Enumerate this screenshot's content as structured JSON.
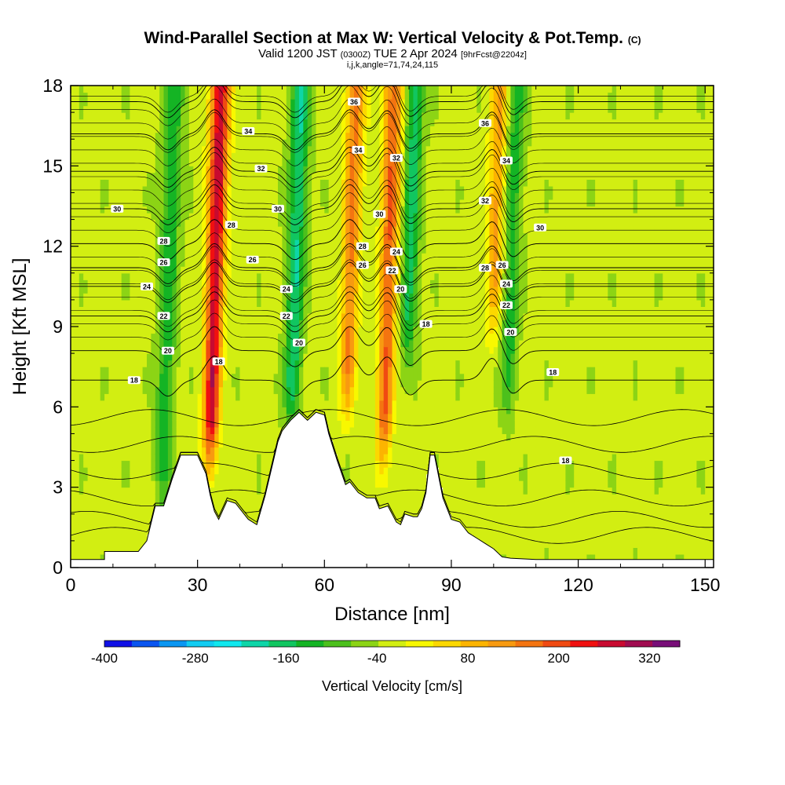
{
  "title": {
    "main": "Wind-Parallel Section at Max W: Vertical Velocity & Pot.Temp.",
    "copyright": "(C)",
    "valid_prefix": "Valid 1200 JST",
    "valid_utc": "(0300Z)",
    "valid_date": "TUE 2 Apr 2024",
    "forecast": "[9hrFcst@2204z]",
    "indices": "i,j,k,angle=71,74,24,115"
  },
  "chart_data": {
    "type": "heatmap",
    "xlabel": "Distance [nm]",
    "ylabel": "Height [Kft MSL]",
    "xlim": [
      0,
      152
    ],
    "ylim": [
      0,
      18
    ],
    "x_ticks": [
      0,
      30,
      60,
      90,
      120,
      150
    ],
    "y_ticks": [
      0,
      3,
      6,
      9,
      12,
      15,
      18
    ],
    "colorbar": {
      "label": "Vertical Velocity [cm/s]",
      "range": [
        -400,
        360
      ],
      "step": 40,
      "tick_labels": [
        -400,
        -280,
        -160,
        -40,
        80,
        200,
        320
      ],
      "colors": [
        "#1010e6",
        "#0a55f0",
        "#0a96f2",
        "#12ccf2",
        "#10e8ee",
        "#0ed6a8",
        "#11c660",
        "#14b424",
        "#4cc01c",
        "#8cd415",
        "#d2ee12",
        "#f8f800",
        "#fcd800",
        "#fcb400",
        "#f89a10",
        "#f47410",
        "#f04a12",
        "#f01010",
        "#c80a30",
        "#a00c50",
        "#780e78"
      ]
    },
    "updrafts": [
      {
        "x": 34,
        "z_base": 4.0,
        "z_top": 18,
        "peak": 340
      },
      {
        "x": 66,
        "z_base": 6.0,
        "z_top": 18,
        "peak": 200
      },
      {
        "x": 75,
        "z_base": 4.0,
        "z_top": 18,
        "peak": 230
      },
      {
        "x": 100,
        "z_base": 9.0,
        "z_top": 18,
        "peak": 160
      }
    ],
    "downdrafts": [
      {
        "x": 23,
        "z_base": 2.5,
        "z_top": 18,
        "peak": -120
      },
      {
        "x": 53,
        "z_base": 5.5,
        "z_top": 18,
        "peak": -170
      },
      {
        "x": 80,
        "z_base": 8.0,
        "z_top": 18,
        "peak": -150
      },
      {
        "x": 104,
        "z_base": 6.0,
        "z_top": 18,
        "peak": -110
      }
    ],
    "terrain": [
      [
        0,
        0.3
      ],
      [
        8,
        0.3
      ],
      [
        8,
        0.6
      ],
      [
        16,
        0.6
      ],
      [
        18,
        1
      ],
      [
        20,
        2.3
      ],
      [
        22,
        2.3
      ],
      [
        24,
        3.3
      ],
      [
        26,
        4.2
      ],
      [
        30,
        4.2
      ],
      [
        32,
        3.5
      ],
      [
        33,
        2.7
      ],
      [
        34,
        2.1
      ],
      [
        35,
        1.8
      ],
      [
        37,
        2.5
      ],
      [
        39,
        2.4
      ],
      [
        41,
        2
      ],
      [
        42,
        1.8
      ],
      [
        44,
        1.6
      ],
      [
        46,
        2.7
      ],
      [
        49,
        4.7
      ],
      [
        50,
        5.1
      ],
      [
        52,
        5.5
      ],
      [
        54,
        5.8
      ],
      [
        56,
        5.5
      ],
      [
        58,
        5.8
      ],
      [
        60,
        5.7
      ],
      [
        61,
        5
      ],
      [
        63,
        4
      ],
      [
        65,
        3.1
      ],
      [
        66,
        3.2
      ],
      [
        68,
        2.8
      ],
      [
        70,
        2.6
      ],
      [
        72,
        2.6
      ],
      [
        73,
        2.2
      ],
      [
        75,
        2.3
      ],
      [
        77,
        1.7
      ],
      [
        78,
        1.6
      ],
      [
        79,
        2
      ],
      [
        81,
        1.9
      ],
      [
        82,
        1.9
      ],
      [
        83,
        2.2
      ],
      [
        84,
        2.8
      ],
      [
        85,
        4.2
      ],
      [
        86,
        4.2
      ],
      [
        88,
        2.6
      ],
      [
        90,
        1.8
      ],
      [
        92,
        1.7
      ],
      [
        94,
        1.3
      ],
      [
        96,
        1.1
      ],
      [
        98,
        0.9
      ],
      [
        100,
        0.7
      ],
      [
        102,
        0.4
      ],
      [
        104,
        0.35
      ],
      [
        110,
        0.3
      ],
      [
        152,
        0.3
      ]
    ],
    "theta_contours": [
      {
        "label": "18",
        "z": 7.0
      },
      {
        "label": "20",
        "z": 8.1
      },
      {
        "label": "22",
        "z": 9.4
      },
      {
        "label": "24",
        "z": 10.5
      },
      {
        "label": "26",
        "z": 11.2
      },
      {
        "label": "28",
        "z": 12.1
      },
      {
        "label": "30",
        "z": 13.4
      },
      {
        "label": "32",
        "z": 14.8
      },
      {
        "label": "34",
        "z": 16.2
      },
      {
        "label": "36",
        "z": 17.4
      }
    ],
    "contour_labels": [
      {
        "text": "30",
        "x": 11,
        "z": 13.4
      },
      {
        "text": "28",
        "x": 22,
        "z": 12.2
      },
      {
        "text": "26",
        "x": 22,
        "z": 11.4
      },
      {
        "text": "24",
        "x": 18,
        "z": 10.5
      },
      {
        "text": "22",
        "x": 22,
        "z": 9.4
      },
      {
        "text": "20",
        "x": 23,
        "z": 8.1
      },
      {
        "text": "18",
        "x": 15,
        "z": 7.0
      },
      {
        "text": "18",
        "x": 35,
        "z": 7.7
      },
      {
        "text": "28",
        "x": 38,
        "z": 12.8
      },
      {
        "text": "26",
        "x": 43,
        "z": 11.5
      },
      {
        "text": "34",
        "x": 42,
        "z": 16.3
      },
      {
        "text": "32",
        "x": 45,
        "z": 14.9
      },
      {
        "text": "30",
        "x": 49,
        "z": 13.4
      },
      {
        "text": "24",
        "x": 51,
        "z": 10.4
      },
      {
        "text": "22",
        "x": 51,
        "z": 9.4
      },
      {
        "text": "20",
        "x": 54,
        "z": 8.4
      },
      {
        "text": "36",
        "x": 67,
        "z": 17.4
      },
      {
        "text": "34",
        "x": 68,
        "z": 15.6
      },
      {
        "text": "32",
        "x": 77,
        "z": 15.3
      },
      {
        "text": "30",
        "x": 73,
        "z": 13.2
      },
      {
        "text": "28",
        "x": 69,
        "z": 12.0
      },
      {
        "text": "26",
        "x": 69,
        "z": 11.3
      },
      {
        "text": "24",
        "x": 77,
        "z": 11.8
      },
      {
        "text": "22",
        "x": 76,
        "z": 11.1
      },
      {
        "text": "20",
        "x": 78,
        "z": 10.4
      },
      {
        "text": "18",
        "x": 84,
        "z": 9.1
      },
      {
        "text": "36",
        "x": 98,
        "z": 16.6
      },
      {
        "text": "34",
        "x": 103,
        "z": 15.2
      },
      {
        "text": "32",
        "x": 98,
        "z": 13.7
      },
      {
        "text": "30",
        "x": 111,
        "z": 12.7
      },
      {
        "text": "28",
        "x": 98,
        "z": 11.2
      },
      {
        "text": "26",
        "x": 102,
        "z": 11.3
      },
      {
        "text": "24",
        "x": 103,
        "z": 10.6
      },
      {
        "text": "22",
        "x": 103,
        "z": 9.8
      },
      {
        "text": "20",
        "x": 104,
        "z": 8.8
      },
      {
        "text": "18",
        "x": 114,
        "z": 7.3
      },
      {
        "text": "18",
        "x": 117,
        "z": 4.0
      }
    ]
  }
}
